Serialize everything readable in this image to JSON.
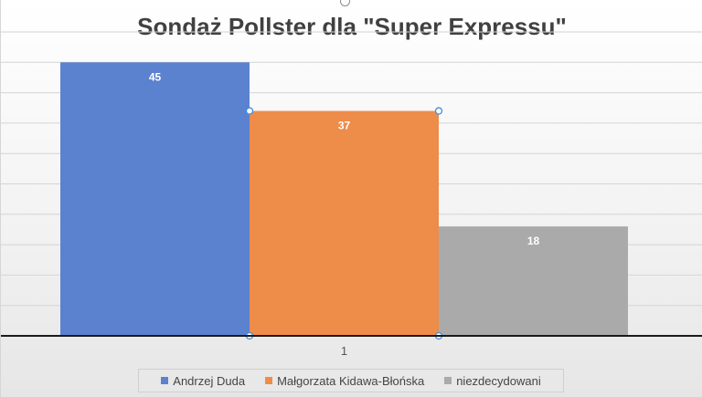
{
  "chart_data": {
    "type": "bar",
    "title": "Sondaż Pollster dla \"Super Expressu\"",
    "categories": [
      "1"
    ],
    "series": [
      {
        "name": "Andrzej Duda",
        "values": [
          45
        ],
        "color": "#5b82cf"
      },
      {
        "name": "Małgorzata Kidawa-Błońska",
        "values": [
          37
        ],
        "color": "#ee8c4a"
      },
      {
        "name": "niezdecydowani",
        "values": [
          18
        ],
        "color": "#aaaaaa"
      }
    ],
    "ylim": [
      0,
      50
    ],
    "grid": true,
    "legend": "bottom",
    "data_labels": true,
    "selected_series": "Małgorzata Kidawa-Błońska"
  }
}
